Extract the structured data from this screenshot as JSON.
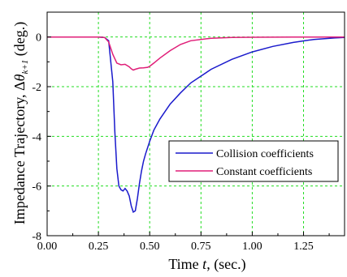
{
  "chart_data": {
    "type": "line",
    "title": "",
    "xlabel_prefix": "Time ",
    "xlabel_var": "t",
    "xlabel_suffix": ", (sec.)",
    "ylabel_prefix": "Impedance Trajectory, Δ",
    "ylabel_var": "θ",
    "ylabel_sub": "k+1",
    "ylabel_suffix": " (deg.)",
    "xlim": [
      0.0,
      1.45
    ],
    "ylim": [
      -8,
      1
    ],
    "xticks": [
      0.0,
      0.25,
      0.5,
      0.75,
      1.0,
      1.25
    ],
    "xtick_labels": [
      "0.00",
      "0.25",
      "0.50",
      "0.75",
      "1.00",
      "1.25"
    ],
    "yticks": [
      0,
      -2,
      -4,
      -6,
      -8
    ],
    "ytick_labels": [
      "0",
      "-2",
      "-4",
      "-6",
      "-8"
    ],
    "grid": true,
    "legend_position": "center-right",
    "series": [
      {
        "name": "Collision coefficients",
        "color": "#1a1acc",
        "x": [
          0.0,
          0.25,
          0.28,
          0.3,
          0.32,
          0.33,
          0.34,
          0.35,
          0.36,
          0.37,
          0.38,
          0.39,
          0.4,
          0.41,
          0.42,
          0.43,
          0.44,
          0.45,
          0.46,
          0.47,
          0.48,
          0.5,
          0.52,
          0.55,
          0.6,
          0.65,
          0.7,
          0.8,
          0.9,
          1.0,
          1.1,
          1.2,
          1.3,
          1.4,
          1.45
        ],
        "y": [
          0.0,
          0.0,
          -0.02,
          -0.15,
          -1.8,
          -3.8,
          -5.3,
          -6.0,
          -6.15,
          -6.2,
          -6.1,
          -6.2,
          -6.4,
          -6.8,
          -7.05,
          -7.0,
          -6.5,
          -5.9,
          -5.4,
          -5.0,
          -4.7,
          -4.2,
          -3.75,
          -3.3,
          -2.7,
          -2.25,
          -1.85,
          -1.3,
          -0.9,
          -0.6,
          -0.38,
          -0.22,
          -0.1,
          -0.04,
          -0.02
        ]
      },
      {
        "name": "Constant coefficients",
        "color": "#e01e78",
        "x": [
          0.0,
          0.25,
          0.28,
          0.3,
          0.32,
          0.34,
          0.36,
          0.38,
          0.4,
          0.41,
          0.42,
          0.43,
          0.45,
          0.47,
          0.49,
          0.5,
          0.52,
          0.55,
          0.6,
          0.65,
          0.7,
          0.8,
          0.9,
          1.0,
          1.2,
          1.45
        ],
        "y": [
          0.0,
          0.0,
          -0.02,
          -0.2,
          -0.7,
          -1.05,
          -1.12,
          -1.1,
          -1.2,
          -1.28,
          -1.33,
          -1.3,
          -1.25,
          -1.24,
          -1.22,
          -1.18,
          -1.05,
          -0.85,
          -0.55,
          -0.3,
          -0.15,
          -0.05,
          -0.02,
          -0.01,
          0.0,
          0.0
        ]
      }
    ]
  }
}
